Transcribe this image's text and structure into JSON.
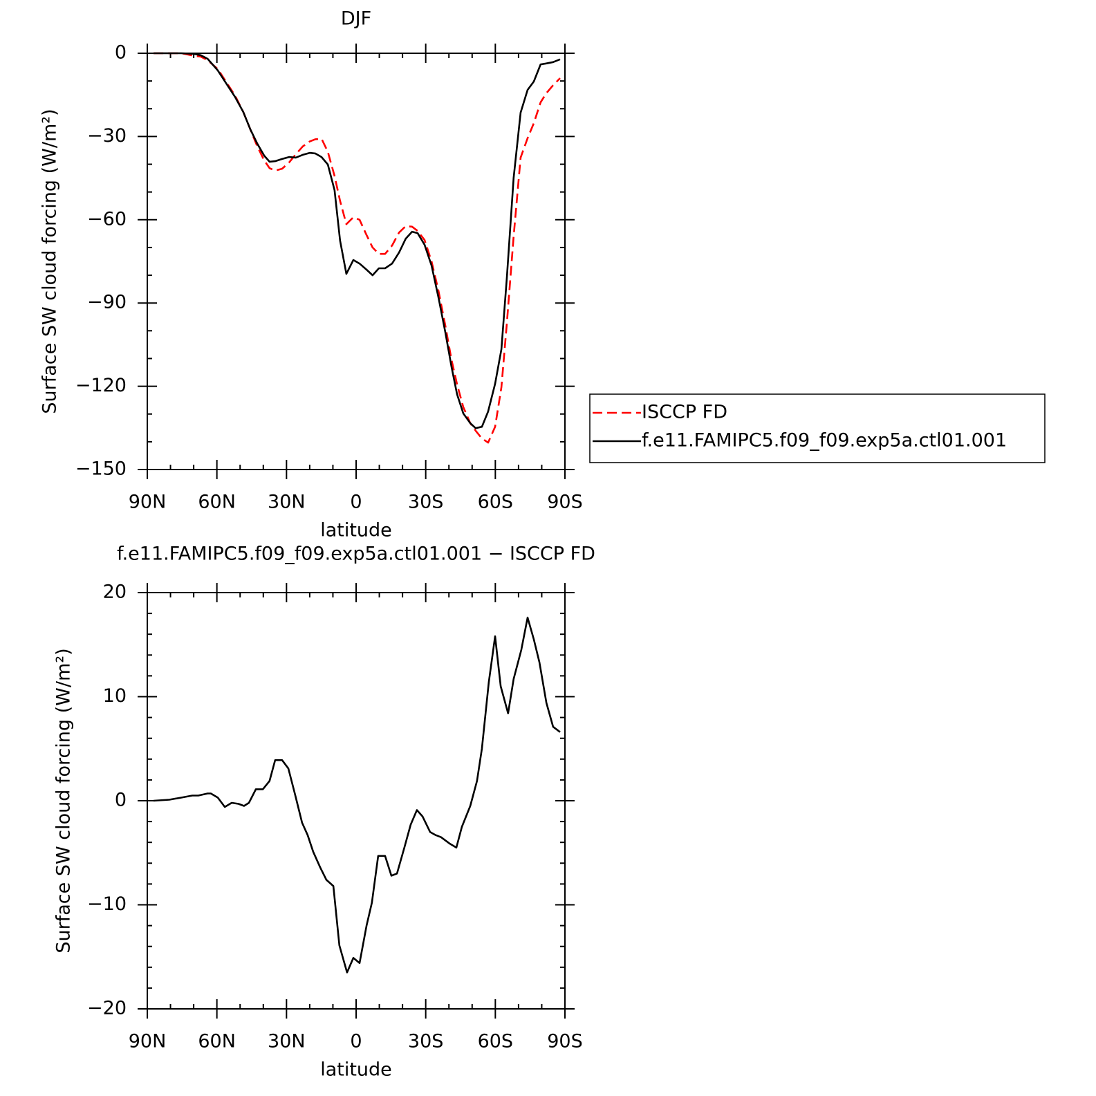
{
  "chart_data": [
    {
      "type": "line",
      "title": "DJF",
      "xlabel": "latitude",
      "ylabel": "Surface SW cloud forcing (W/m²)",
      "x": [
        87.3,
        75.4,
        70.0,
        67,
        64,
        59.6,
        55.1,
        52.2,
        48.6,
        45.6,
        42.6,
        39.6,
        37.3,
        34.9,
        31.9,
        28.9,
        26.0,
        23.0,
        20.0,
        17.6,
        14.9,
        12.2,
        9.3,
        6.9,
        4.2,
        1.2,
        -1.5,
        -4.5,
        -7.1,
        -9.8,
        -12.5,
        -15.5,
        -18.5,
        -21.4,
        -24.1,
        -26.5,
        -29.5,
        -32.5,
        -35.5,
        -38.4,
        -41.1,
        -43.5,
        -46.2,
        -49.2,
        -51.5,
        -54.2,
        -56.9,
        -59.9,
        -62.6,
        -65.0,
        -67.9,
        -70.9,
        -73.9,
        -76.6,
        -79.5,
        -81.9,
        -84.9,
        -87.9
      ],
      "series": [
        {
          "name": "ISCCP FD",
          "color": "#ff0000",
          "linestyle": "dashed",
          "values": [
            0,
            0,
            -0.9,
            -1.2,
            -2.5,
            -5.7,
            -11.5,
            -15.2,
            -21.2,
            -27.4,
            -33.6,
            -38.6,
            -41.4,
            -42.3,
            -41.6,
            -39.4,
            -36.4,
            -33.6,
            -31.8,
            -31.0,
            -30.8,
            -35.5,
            -44.2,
            -53.2,
            -61.6,
            -59.1,
            -60,
            -65.5,
            -70,
            -72.3,
            -72.3,
            -69.3,
            -64.6,
            -62.3,
            -62.5,
            -64,
            -67.3,
            -75,
            -85.6,
            -98,
            -110.4,
            -119.3,
            -127.5,
            -133.3,
            -136,
            -138.8,
            -140.3,
            -134.6,
            -120.4,
            -97,
            -66,
            -37.6,
            -30.6,
            -25.2,
            -17.7,
            -14.5,
            -11.5,
            -9
          ]
        },
        {
          "name": "f.e11.FAMIPC5.f09_f09.exp5a.ctl01.001",
          "color": "#000000",
          "linestyle": "solid",
          "values": [
            0,
            0,
            -0.2,
            -0.7,
            -2,
            -6.2,
            -12,
            -15.7,
            -21.2,
            -27.4,
            -32.6,
            -36.9,
            -39.1,
            -38.9,
            -38.1,
            -37.4,
            -37.6,
            -36.6,
            -35.9,
            -36.1,
            -37.4,
            -40.1,
            -49.3,
            -67.5,
            -79.5,
            -74.5,
            -75.8,
            -78,
            -80,
            -77.5,
            -77.5,
            -75.8,
            -71.8,
            -66.8,
            -64.3,
            -64.8,
            -69,
            -76.5,
            -88,
            -100.4,
            -112.9,
            -122.9,
            -129.8,
            -133.3,
            -135.1,
            -134.6,
            -129.1,
            -119.1,
            -106.7,
            -80.5,
            -44.9,
            -21.4,
            -13.2,
            -10.2,
            -4,
            -3.7,
            -3.2,
            -2.2
          ]
        }
      ],
      "xlim": [
        90,
        -90
      ],
      "xticks": [
        {
          "value": 90,
          "label": "90N"
        },
        {
          "value": 60,
          "label": "60N"
        },
        {
          "value": 30,
          "label": "30N"
        },
        0,
        {
          "value": -30,
          "label": "30S"
        },
        {
          "value": -60,
          "label": "60S"
        },
        {
          "value": -90,
          "label": "90S"
        }
      ],
      "xminorticks": [
        80,
        70,
        50,
        40,
        20,
        10,
        -10,
        -20,
        -40,
        -50,
        -70,
        -80
      ],
      "ylim": [
        -150,
        0
      ],
      "yticks": [
        0,
        {
          "value": -30,
          "label": "−30"
        },
        {
          "value": -60,
          "label": "−60"
        },
        {
          "value": -90,
          "label": "−90"
        },
        {
          "value": -120,
          "label": "−120"
        },
        {
          "value": -150,
          "label": "−150"
        }
      ],
      "yminorticks": [
        -10,
        -20,
        -40,
        -50,
        -70,
        -80,
        -100,
        -110,
        -130,
        -140
      ],
      "legend": "right"
    },
    {
      "type": "line",
      "title": "f.e11.FAMIPC5.f09_f09.exp5a.ctl01.001 − ISCCP FD",
      "xlabel": "latitude",
      "ylabel": "Surface SW cloud forcing (W/m²)",
      "x": [
        87.3,
        80.5,
        75.4,
        70.6,
        68,
        64,
        62.6,
        59.6,
        56.6,
        53.6,
        50.7,
        48.3,
        46.2,
        43.2,
        40.2,
        37.3,
        34.9,
        31.9,
        29.2,
        26.2,
        23.3,
        20.9,
        18.5,
        15.5,
        12.8,
        9.8,
        7.2,
        3.9,
        1.2,
        -1.5,
        -4.5,
        -6.8,
        -9.5,
        -12.5,
        -15.2,
        -17.6,
        -20.8,
        -23.5,
        -26.2,
        -28.6,
        -31.9,
        -34.3,
        -36.6,
        -40.2,
        -43.2,
        -45.6,
        -49.2,
        -52.1,
        -54.2,
        -57.2,
        -59.9,
        -62.3,
        -65.5,
        -67.9,
        -71.2,
        -73.9,
        -76.6,
        -79,
        -82,
        -84.9,
        -87.9
      ],
      "values": [
        0,
        0.1,
        0.3,
        0.5,
        0.5,
        0.7,
        0.7,
        0.3,
        -0.6,
        -0.2,
        -0.3,
        -0.5,
        -0.2,
        1.1,
        1.1,
        1.9,
        3.9,
        3.9,
        3.1,
        0.5,
        -2.1,
        -3.3,
        -4.9,
        -6.4,
        -7.6,
        -8.2,
        -13.9,
        -16.5,
        -15.1,
        -15.6,
        -12.0,
        -9.8,
        -5.3,
        -5.3,
        -7.2,
        -7.0,
        -4.5,
        -2.3,
        -0.9,
        -1.5,
        -3.0,
        -3.3,
        -3.5,
        -4.1,
        -4.5,
        -2.5,
        -0.5,
        1.9,
        5.0,
        11.4,
        15.8,
        11.0,
        8.4,
        11.7,
        14.5,
        17.6,
        15.5,
        13.3,
        9.4,
        7.1,
        6.6
      ],
      "color": "#000000",
      "xlim": [
        90,
        -90
      ],
      "xticks": [
        {
          "value": 90,
          "label": "90N"
        },
        {
          "value": 60,
          "label": "60N"
        },
        {
          "value": 30,
          "label": "30N"
        },
        0,
        {
          "value": -30,
          "label": "30S"
        },
        {
          "value": -60,
          "label": "60S"
        },
        {
          "value": -90,
          "label": "90S"
        }
      ],
      "xminorticks": [
        80,
        70,
        50,
        40,
        20,
        10,
        -10,
        -20,
        -40,
        -50,
        -70,
        -80
      ],
      "ylim": [
        -20,
        20
      ],
      "yticks": [
        20,
        10,
        0,
        {
          "value": -10,
          "label": "−10"
        },
        {
          "value": -20,
          "label": "−20"
        }
      ],
      "yminorticks": [
        18,
        16,
        14,
        12,
        8,
        6,
        4,
        2,
        -2,
        -4,
        -6,
        -8,
        -12,
        -14,
        -16,
        -18
      ]
    }
  ]
}
